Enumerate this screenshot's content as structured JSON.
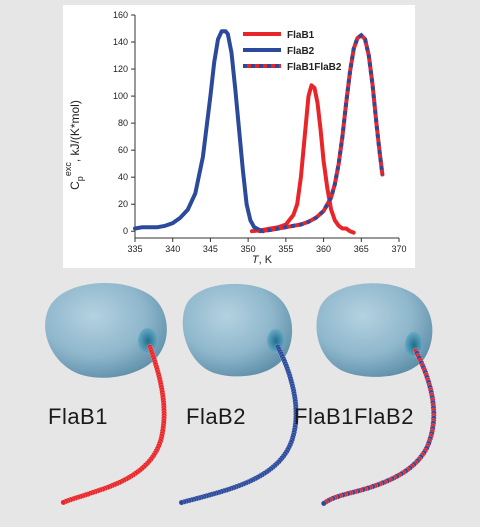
{
  "chart_data": {
    "type": "line",
    "xlabel": "T, K",
    "ylabel": "C_p^exc, kJ/(K*mol)",
    "ylabel_main": "C",
    "ylabel_sub": "p",
    "ylabel_sup": "exc",
    "ylabel_rest": ", kJ/(K*mol)",
    "xlabel_italic": "T",
    "xlabel_rest": ", K",
    "xlim": [
      335,
      370
    ],
    "ylim": [
      -5,
      160
    ],
    "xticks": [
      335,
      340,
      345,
      350,
      355,
      360,
      365,
      370
    ],
    "yticks": [
      0,
      20,
      40,
      60,
      80,
      100,
      120,
      140,
      160
    ],
    "grid": false,
    "legend_position": "top-right",
    "series": [
      {
        "name": "FlaB1",
        "color": "#e8262a",
        "x": [
          350.5,
          352,
          353,
          354,
          355,
          356,
          356.5,
          357,
          357.5,
          358,
          358.4,
          358.8,
          359.2,
          359.6,
          360,
          360.5,
          361,
          361.5,
          362,
          362.5,
          363,
          363.5,
          364
        ],
        "y": [
          0,
          1,
          2,
          3,
          5,
          12,
          20,
          40,
          70,
          100,
          108,
          106,
          95,
          75,
          52,
          32,
          16,
          8,
          4,
          2,
          2,
          0,
          -1
        ]
      },
      {
        "name": "FlaB2",
        "color": "#2b4a9c",
        "x": [
          335,
          336,
          337,
          338,
          339,
          340,
          341,
          342,
          343,
          344,
          345,
          345.5,
          346,
          346.5,
          347,
          347.3,
          347.8,
          348.3,
          348.8,
          349.3,
          349.8,
          350.3,
          350.8,
          351.5,
          352
        ],
        "y": [
          2,
          3,
          3,
          3,
          4,
          6,
          10,
          16,
          28,
          55,
          100,
          125,
          142,
          148,
          148,
          146,
          132,
          105,
          75,
          45,
          20,
          8,
          3,
          1,
          0
        ]
      },
      {
        "name": "FlaB1FlaB2",
        "color": "#e8262a",
        "color2": "#2b4a9c",
        "x": [
          351.5,
          353,
          354,
          355,
          356,
          357,
          358,
          359,
          360,
          361,
          361.5,
          362,
          362.5,
          363,
          363.5,
          364,
          364.5,
          365,
          365.5,
          366,
          366.5,
          367,
          367.4,
          367.8
        ],
        "y": [
          0,
          1,
          2,
          3,
          4,
          5,
          7,
          10,
          15,
          25,
          35,
          50,
          70,
          95,
          118,
          135,
          143,
          145,
          142,
          130,
          108,
          80,
          60,
          42
        ]
      }
    ]
  },
  "labels": {
    "cell1": "FlaB1",
    "cell2": "FlaB2",
    "cell3": "FlaB1FlaB2"
  },
  "colors": {
    "body": "#8fb7cc",
    "red": "#e8262a",
    "blue": "#2b4a9c",
    "background": "#e6e6e6"
  }
}
